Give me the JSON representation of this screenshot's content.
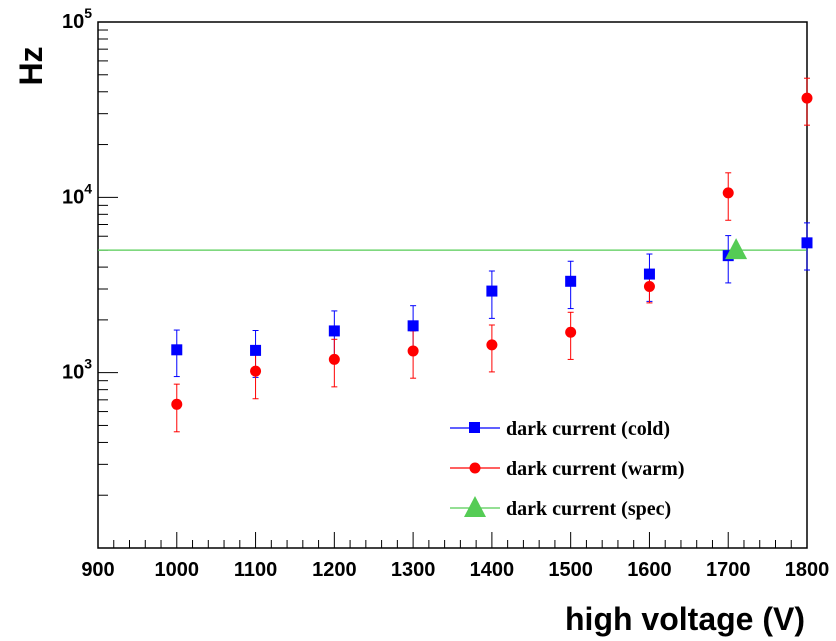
{
  "chart_data": {
    "type": "scatter",
    "title": "",
    "xlabel": "high voltage (V)",
    "ylabel": "Hz",
    "xlim": [
      900,
      1800
    ],
    "ylim": [
      100,
      100000
    ],
    "yscale": "log",
    "grid": false,
    "legend_position": "bottom-right",
    "x_ticks": [
      "900",
      "1000",
      "1100",
      "1200",
      "1300",
      "1400",
      "1500",
      "1600",
      "1700",
      "1800"
    ],
    "y_ticks": [
      {
        "base": "10",
        "exp": "3",
        "value": 1000
      },
      {
        "base": "10",
        "exp": "4",
        "value": 10000
      },
      {
        "base": "10",
        "exp": "5",
        "value": 100000
      }
    ],
    "series": [
      {
        "name": "dark current (cold)",
        "color": "#0000ff",
        "marker": "square",
        "x": [
          1000,
          1100,
          1200,
          1300,
          1400,
          1500,
          1600,
          1700,
          1800
        ],
        "y": [
          1350,
          1340,
          1730,
          1850,
          2920,
          3320,
          3650,
          4650,
          5500
        ],
        "err": [
          400,
          400,
          520,
          560,
          880,
          1000,
          1100,
          1400,
          1650
        ]
      },
      {
        "name": "dark current (warm)",
        "color": "#ff0000",
        "marker": "circle",
        "x": [
          1000,
          1100,
          1200,
          1300,
          1400,
          1500,
          1600,
          1700,
          1800
        ],
        "y": [
          660,
          1020,
          1190,
          1330,
          1440,
          1700,
          3100,
          10600,
          36800
        ],
        "err": [
          200,
          310,
          360,
          400,
          430,
          510,
          600,
          3200,
          11000
        ]
      },
      {
        "name": "dark current (spec)",
        "color": "#55cc55",
        "marker": "triangle",
        "line_y": 5000,
        "x": [
          1710
        ],
        "y": [
          5000
        ]
      }
    ]
  }
}
